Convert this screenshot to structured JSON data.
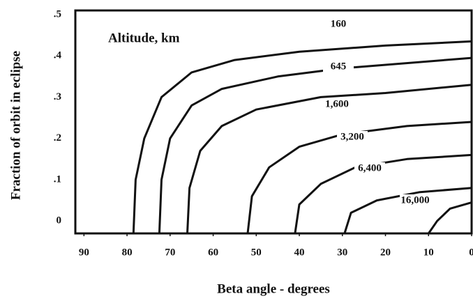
{
  "chart_data": {
    "type": "line",
    "annotation": "Altitude, km",
    "x_label": "Beta angle - degrees",
    "y_label": "Fraction of orbit in eclipse",
    "xlim": [
      92,
      0
    ],
    "ylim": [
      -0.03,
      0.51
    ],
    "xticks": [
      90,
      80,
      70,
      60,
      50,
      40,
      30,
      20,
      10,
      0
    ],
    "yticks": [
      {
        "value": 0.5,
        "label": ".5"
      },
      {
        "value": 0.4,
        "label": ".4"
      },
      {
        "value": 0.3,
        "label": ".3"
      },
      {
        "value": 0.2,
        "label": ".2"
      },
      {
        "value": 0.1,
        "label": ".1"
      },
      0
    ],
    "color": "#111111",
    "series": [
      {
        "name": "160",
        "x": [
          78.5,
          78,
          76,
          72,
          65,
          55,
          40,
          20,
          0
        ],
        "values": [
          -0.03,
          0.1,
          0.2,
          0.3,
          0.36,
          0.39,
          0.41,
          0.425,
          0.435
        ]
      },
      {
        "name": "645",
        "x": [
          72.5,
          72,
          70,
          65,
          58,
          45,
          30,
          0
        ],
        "values": [
          -0.03,
          0.1,
          0.2,
          0.28,
          0.32,
          0.35,
          0.37,
          0.395
        ]
      },
      {
        "name": "1,600",
        "x": [
          66,
          65.5,
          63,
          58,
          50,
          35,
          20,
          0
        ],
        "values": [
          -0.03,
          0.08,
          0.17,
          0.23,
          0.27,
          0.3,
          0.31,
          0.33
        ]
      },
      {
        "name": "3,200",
        "x": [
          52,
          51,
          47,
          40,
          30,
          15,
          0
        ],
        "values": [
          -0.03,
          0.06,
          0.13,
          0.18,
          0.21,
          0.23,
          0.24
        ]
      },
      {
        "name": "6,400",
        "x": [
          41,
          40,
          35,
          27,
          15,
          0
        ],
        "values": [
          -0.03,
          0.04,
          0.09,
          0.13,
          0.15,
          0.16
        ]
      },
      {
        "name": "16,000",
        "x": [
          29.5,
          28,
          22,
          12,
          0
        ],
        "values": [
          -0.03,
          0.02,
          0.05,
          0.07,
          0.08
        ]
      },
      {
        "x": [
          10,
          8,
          5,
          0
        ],
        "values": [
          -0.03,
          0.0,
          0.03,
          0.045
        ]
      }
    ]
  }
}
